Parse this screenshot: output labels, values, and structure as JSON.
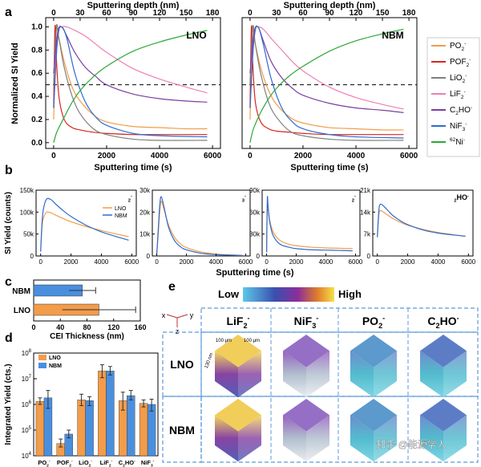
{
  "panel_labels": {
    "a": "a",
    "b": "b",
    "c": "c",
    "d": "d",
    "e": "e"
  },
  "panel_a": {
    "top_axis_label": "Sputtering depth (nm)",
    "top_ticks": [
      "0",
      "30",
      "60",
      "90",
      "120",
      "150",
      "180"
    ],
    "xlabel": "Sputtering time (s)",
    "xticks": [
      "0",
      "2000",
      "4000",
      "6000"
    ],
    "ylabel": "Normalized SI Yield",
    "yticks": [
      "0.0",
      "0.2",
      "0.4",
      "0.6",
      "0.8",
      "1.0"
    ],
    "sub_titles": [
      "LNO",
      "NBM"
    ],
    "legend": [
      {
        "pre": "PO",
        "sub": "2",
        "sup": "-",
        "color": "#f39c4a"
      },
      {
        "pre": "POF",
        "sub": "2",
        "sup": "-",
        "color": "#d7261e"
      },
      {
        "pre": "LiO",
        "sub": "2",
        "sup": "-",
        "color": "#7f7f7f"
      },
      {
        "pre": "LiF",
        "sub": "2",
        "sup": "-",
        "color": "#ef7fb3"
      },
      {
        "pre": "C",
        "sub": "2",
        "mid": "HO",
        "sup": "-",
        "color": "#7b3fa0"
      },
      {
        "pre": "NiF",
        "sub": "3",
        "sup": "-",
        "color": "#2f6bd0"
      },
      {
        "sup0": "62",
        "pre": "Ni",
        "sup": "-",
        "color": "#2ca838"
      }
    ]
  },
  "panel_b": {
    "ylabel": "SI Yield (counts)",
    "xlabel": "Sputtering time (s)",
    "xticks": [
      "0",
      "2000",
      "4000",
      "6000"
    ],
    "legend": [
      {
        "label": "LNO",
        "color": "#f39c4a"
      },
      {
        "label": "NBM",
        "color": "#2f6bd0"
      }
    ],
    "subplots": [
      {
        "label_pre": "LiF",
        "sub": "2",
        "sup": "-",
        "yticks": [
          "0",
          "50k",
          "100k",
          "150k"
        ]
      },
      {
        "label_pre": "NiF",
        "sub": "3",
        "sup": "-",
        "yticks": [
          "0",
          "10k",
          "20k",
          "30k"
        ]
      },
      {
        "label_pre": "PO",
        "sub": "2",
        "sup": "-",
        "yticks": [
          "0",
          "30k",
          "60k",
          "90k"
        ]
      },
      {
        "label_pre": "C",
        "sub": "2",
        "mid": "HO",
        "sup": "-",
        "yticks": [
          "0",
          "7k",
          "14k",
          "21k"
        ]
      }
    ]
  },
  "panel_c": {
    "xlabel": "CEI Thickness (nm)",
    "xticks": [
      "0",
      "40",
      "80",
      "120",
      "160"
    ],
    "categories": [
      "NBM",
      "LNO"
    ]
  },
  "panel_d": {
    "ylabel": "Integrated Yield (cts.)",
    "yticks": [
      {
        "b": "10",
        "e": "4"
      },
      {
        "b": "10",
        "e": "5"
      },
      {
        "b": "10",
        "e": "6"
      },
      {
        "b": "10",
        "e": "7"
      },
      {
        "b": "10",
        "e": "8"
      }
    ],
    "legend": [
      {
        "label": "LNO",
        "color": "#f39c4a"
      },
      {
        "label": "NBM",
        "color": "#4a8fde"
      }
    ],
    "categories": [
      {
        "pre": "PO",
        "sub": "2",
        "sup": "-"
      },
      {
        "pre": "POF",
        "sub": "2",
        "sup": "-"
      },
      {
        "pre": "LiO",
        "sub": "2",
        "sup": "-"
      },
      {
        "pre": "LiF",
        "sub": "2",
        "sup": "-"
      },
      {
        "pre": "C",
        "sub": "2",
        "mid": "HO",
        "sup": "-"
      },
      {
        "pre": "NiF",
        "sub": "3",
        "sup": "-"
      }
    ]
  },
  "panel_e": {
    "colorbar_low": "Low",
    "colorbar_high": "High",
    "axes": {
      "x": "x",
      "y": "y",
      "z": "z"
    },
    "columns": [
      {
        "pre": "LiF",
        "sub": "2",
        "sup": "-"
      },
      {
        "pre": "NiF",
        "sub": "3",
        "sup": "-"
      },
      {
        "pre": "PO",
        "sub": "2",
        "sup": "-"
      },
      {
        "pre": "C",
        "sub": "2",
        "mid": "HO",
        "sup": "-"
      }
    ],
    "rows": [
      "LNO",
      "NBM"
    ],
    "dim_labels": [
      "100 μm",
      "100 μm",
      "130 nm"
    ]
  },
  "watermark": "知乎 @能源学人",
  "chart_data": [
    {
      "type": "line",
      "title": "LNO",
      "xlabel": "Sputtering time (s)",
      "ylabel": "Normalized SI Yield",
      "secondary_xlabel": "Sputtering depth (nm)",
      "xlim": [
        -300,
        6300
      ],
      "ylim": [
        -0.05,
        1.08
      ],
      "reference_line": 0.5,
      "series": [
        {
          "name": "PO2-",
          "color": "#f39c4a",
          "x": [
            0,
            100,
            200,
            400,
            700,
            1000,
            1500,
            2000,
            3000,
            4000,
            5000,
            5800
          ],
          "y": [
            0.2,
            0.95,
            0.9,
            0.7,
            0.48,
            0.36,
            0.24,
            0.18,
            0.14,
            0.13,
            0.12,
            0.12
          ]
        },
        {
          "name": "POF2-",
          "color": "#d7261e",
          "x": [
            0,
            50,
            100,
            200,
            400,
            700,
            1000,
            1500,
            2000,
            3000,
            4000,
            5800
          ],
          "y": [
            0.3,
            1.0,
            0.75,
            0.4,
            0.2,
            0.13,
            0.11,
            0.09,
            0.08,
            0.07,
            0.07,
            0.07
          ]
        },
        {
          "name": "LiO2-",
          "color": "#7f7f7f",
          "x": [
            0,
            100,
            200,
            400,
            700,
            1000,
            1500,
            2000,
            3000,
            4000,
            5800
          ],
          "y": [
            0.5,
            1.0,
            0.9,
            0.65,
            0.4,
            0.25,
            0.12,
            0.07,
            0.03,
            0.02,
            0.02
          ]
        },
        {
          "name": "LiF2-",
          "color": "#ef7fb3",
          "x": [
            0,
            200,
            300,
            500,
            800,
            1200,
            1600,
            2000,
            3000,
            4000,
            5000,
            5800
          ],
          "y": [
            0.6,
            0.97,
            1.0,
            1.0,
            0.97,
            0.92,
            0.85,
            0.78,
            0.64,
            0.55,
            0.48,
            0.43
          ]
        },
        {
          "name": "C2HO-",
          "color": "#7b3fa0",
          "x": [
            0,
            150,
            300,
            500,
            800,
            1200,
            1600,
            2000,
            3000,
            4000,
            5000,
            5800
          ],
          "y": [
            0.6,
            0.95,
            1.0,
            0.92,
            0.78,
            0.65,
            0.57,
            0.5,
            0.42,
            0.38,
            0.36,
            0.35
          ]
        },
        {
          "name": "NiF3-",
          "color": "#2f6bd0",
          "x": [
            0,
            150,
            300,
            500,
            800,
            1200,
            1600,
            2000,
            3000,
            4000,
            5800
          ],
          "y": [
            0.3,
            0.9,
            1.0,
            0.9,
            0.6,
            0.35,
            0.22,
            0.15,
            0.08,
            0.06,
            0.05
          ]
        },
        {
          "name": "62Ni-",
          "color": "#2ca838",
          "x": [
            0,
            100,
            200,
            400,
            700,
            1000,
            1500,
            2000,
            3000,
            4000,
            5000,
            5800
          ],
          "y": [
            0.0,
            0.08,
            0.13,
            0.22,
            0.35,
            0.45,
            0.57,
            0.66,
            0.79,
            0.87,
            0.93,
            0.97
          ]
        }
      ]
    },
    {
      "type": "line",
      "title": "NBM",
      "xlabel": "Sputtering time (s)",
      "secondary_xlabel": "Sputtering depth (nm)",
      "xlim": [
        -300,
        6300
      ],
      "ylim": [
        -0.05,
        1.08
      ],
      "reference_line": 0.5,
      "series": [
        {
          "name": "PO2-",
          "color": "#f39c4a",
          "x": [
            0,
            100,
            200,
            400,
            700,
            1000,
            1500,
            2000,
            3000,
            4000,
            5000,
            5800
          ],
          "y": [
            0.2,
            0.95,
            0.85,
            0.65,
            0.45,
            0.33,
            0.22,
            0.17,
            0.13,
            0.12,
            0.11,
            0.11
          ]
        },
        {
          "name": "POF2-",
          "color": "#d7261e",
          "x": [
            0,
            50,
            100,
            200,
            400,
            700,
            1000,
            1500,
            2000,
            3000,
            4000,
            5800
          ],
          "y": [
            0.3,
            1.0,
            0.7,
            0.35,
            0.18,
            0.12,
            0.1,
            0.09,
            0.08,
            0.07,
            0.07,
            0.07
          ]
        },
        {
          "name": "LiO2-",
          "color": "#7f7f7f",
          "x": [
            0,
            100,
            200,
            400,
            700,
            1000,
            1500,
            2000,
            3000,
            4000,
            5800
          ],
          "y": [
            0.5,
            1.0,
            0.85,
            0.6,
            0.35,
            0.22,
            0.1,
            0.06,
            0.03,
            0.02,
            0.02
          ]
        },
        {
          "name": "LiF2-",
          "color": "#ef7fb3",
          "x": [
            0,
            200,
            300,
            500,
            800,
            1200,
            1600,
            2000,
            3000,
            4000,
            5000,
            5800
          ],
          "y": [
            0.6,
            0.97,
            1.0,
            0.98,
            0.9,
            0.8,
            0.7,
            0.62,
            0.48,
            0.39,
            0.33,
            0.29
          ]
        },
        {
          "name": "C2HO-",
          "color": "#7b3fa0",
          "x": [
            0,
            150,
            300,
            500,
            800,
            1200,
            1600,
            2000,
            3000,
            4000,
            5000,
            5800
          ],
          "y": [
            0.6,
            0.95,
            1.0,
            0.88,
            0.7,
            0.56,
            0.47,
            0.41,
            0.34,
            0.3,
            0.28,
            0.26
          ]
        },
        {
          "name": "NiF3-",
          "color": "#2f6bd0",
          "x": [
            0,
            150,
            300,
            500,
            800,
            1200,
            1600,
            2000,
            3000,
            4000,
            5800
          ],
          "y": [
            0.3,
            0.9,
            1.0,
            0.85,
            0.55,
            0.3,
            0.18,
            0.12,
            0.07,
            0.05,
            0.04
          ]
        },
        {
          "name": "62Ni-",
          "color": "#2ca838",
          "x": [
            0,
            100,
            200,
            400,
            700,
            1000,
            1500,
            2000,
            3000,
            4000,
            5000,
            5800
          ],
          "y": [
            0.0,
            0.1,
            0.16,
            0.26,
            0.38,
            0.47,
            0.58,
            0.66,
            0.79,
            0.88,
            0.94,
            0.98
          ]
        }
      ]
    },
    {
      "type": "line",
      "title": "LiF2-",
      "ylabel": "SI Yield (counts)",
      "xlim": [
        -300,
        6300
      ],
      "ylim": [
        0,
        150000
      ],
      "series": [
        {
          "name": "LNO",
          "color": "#f39c4a",
          "x": [
            0,
            100,
            200,
            400,
            700,
            1000,
            1500,
            2000,
            3000,
            4000,
            5000,
            5800
          ],
          "y": [
            10000,
            70000,
            88000,
            100000,
            98000,
            93000,
            85000,
            78000,
            67000,
            58000,
            50000,
            44000
          ]
        },
        {
          "name": "NBM",
          "color": "#2f6bd0",
          "x": [
            0,
            100,
            200,
            400,
            700,
            1000,
            1500,
            2000,
            3000,
            4000,
            5000,
            5800
          ],
          "y": [
            10000,
            80000,
            110000,
            130000,
            128000,
            118000,
            103000,
            90000,
            70000,
            55000,
            44000,
            36000
          ]
        }
      ]
    },
    {
      "type": "line",
      "title": "NiF3-",
      "xlim": [
        -300,
        6300
      ],
      "ylim": [
        0,
        30000
      ],
      "series": [
        {
          "name": "LNO",
          "color": "#f39c4a",
          "x": [
            0,
            100,
            200,
            300,
            500,
            800,
            1200,
            1600,
            2000,
            3000,
            4000,
            5000,
            5800
          ],
          "y": [
            1000,
            10000,
            20000,
            25000,
            21000,
            14000,
            8500,
            5500,
            3800,
            1800,
            900,
            500,
            300
          ]
        },
        {
          "name": "NBM",
          "color": "#2f6bd0",
          "x": [
            0,
            100,
            200,
            300,
            500,
            800,
            1200,
            1600,
            2000,
            3000,
            4000,
            5000,
            5800
          ],
          "y": [
            1000,
            12000,
            23000,
            27000,
            22000,
            13000,
            7000,
            4200,
            2800,
            1200,
            600,
            350,
            200
          ]
        }
      ]
    },
    {
      "type": "line",
      "title": "PO2-",
      "xlim": [
        -300,
        6300
      ],
      "ylim": [
        0,
        90000
      ],
      "series": [
        {
          "name": "LNO",
          "color": "#f39c4a",
          "x": [
            0,
            50,
            100,
            200,
            400,
            700,
            1000,
            1500,
            2000,
            3000,
            4000,
            5000,
            5800
          ],
          "y": [
            5000,
            72000,
            65000,
            50000,
            35000,
            25000,
            20000,
            16000,
            14000,
            12000,
            11000,
            10500,
            10000
          ]
        },
        {
          "name": "NBM",
          "color": "#2f6bd0",
          "x": [
            0,
            50,
            100,
            200,
            400,
            700,
            1000,
            1500,
            2000,
            3000,
            4000,
            5000,
            5800
          ],
          "y": [
            5000,
            78000,
            68000,
            48000,
            30000,
            20000,
            15000,
            12000,
            10000,
            8500,
            8000,
            7500,
            7000
          ]
        }
      ]
    },
    {
      "type": "line",
      "title": "C2HO-",
      "xlim": [
        -300,
        6300
      ],
      "ylim": [
        0,
        21000
      ],
      "series": [
        {
          "name": "LNO",
          "color": "#f39c4a",
          "x": [
            0,
            100,
            200,
            400,
            700,
            1000,
            1500,
            2000,
            3000,
            4000,
            5000,
            5800
          ],
          "y": [
            6000,
            13000,
            14500,
            14000,
            13000,
            12000,
            10800,
            9800,
            8500,
            7500,
            6800,
            6300
          ]
        },
        {
          "name": "NBM",
          "color": "#2f6bd0",
          "x": [
            0,
            100,
            200,
            400,
            700,
            1000,
            1500,
            2000,
            3000,
            4000,
            5000,
            5800
          ],
          "y": [
            6000,
            14500,
            16500,
            16000,
            14500,
            13000,
            11300,
            10000,
            8300,
            7300,
            6700,
            6300
          ]
        }
      ]
    },
    {
      "type": "bar",
      "orientation": "horizontal",
      "xlabel": "CEI Thickness (nm)",
      "xlim": [
        0,
        160
      ],
      "categories": [
        "NBM",
        "LNO"
      ],
      "values": [
        73,
        98
      ],
      "errors": [
        20,
        55
      ],
      "colors": [
        "#4a8fde",
        "#f39c4a"
      ]
    },
    {
      "type": "bar",
      "ylabel": "Integrated Yield (cts.)",
      "log_scale": true,
      "ylim": [
        10000,
        100000000
      ],
      "categories": [
        "PO2-",
        "POF2-",
        "LiO2-",
        "LiF2-",
        "C2HO-",
        "NiF3-"
      ],
      "series": [
        {
          "name": "LNO",
          "color": "#f39c4a",
          "values": [
            1300000,
            30000,
            1500000,
            20000000,
            1400000,
            1100000
          ],
          "err_hi": [
            1800000,
            45000,
            2500000,
            35000000,
            3000000,
            1500000
          ],
          "err_lo": [
            1000000,
            22000,
            900000,
            11000000,
            600000,
            800000
          ]
        },
        {
          "name": "NBM",
          "color": "#4a8fde",
          "values": [
            1800000,
            70000,
            1400000,
            20000000,
            2200000,
            1000000
          ],
          "err_hi": [
            3500000,
            100000,
            2000000,
            30000000,
            3500000,
            1600000
          ],
          "err_lo": [
            700000,
            50000,
            900000,
            14000000,
            1500000,
            550000
          ]
        }
      ]
    }
  ]
}
